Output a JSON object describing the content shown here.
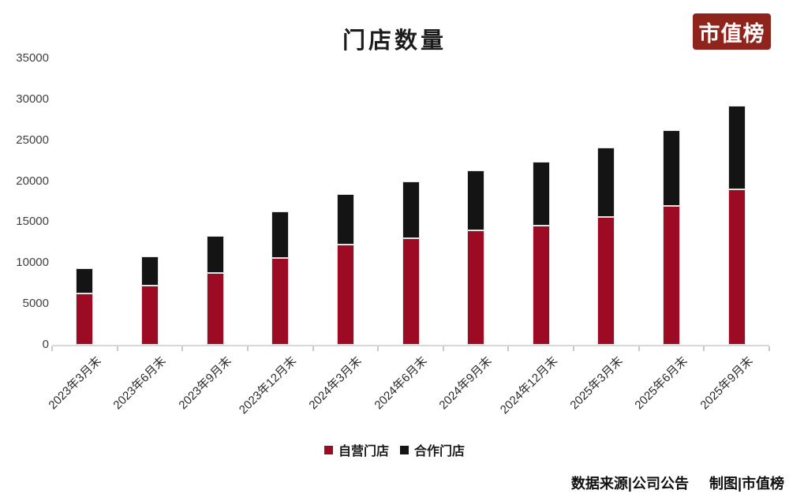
{
  "header": {
    "logo": {
      "text": "市值榜",
      "bg_color": "#8E241C",
      "text_color": "#FFFFFF"
    }
  },
  "chart_data": {
    "type": "bar",
    "stacked": true,
    "title": "门店数量",
    "categories": [
      "2023年3月末",
      "2023年6月末",
      "2023年9月末",
      "2023年12月末",
      "2024年3月末",
      "2024年6月末",
      "2024年9月末",
      "2024年12月末",
      "2025年3月末",
      "2025年6月末",
      "2025年9月末"
    ],
    "series": [
      {
        "name": "自营门店",
        "color": "#9C0B23",
        "values": [
          6310,
          7188,
          8807,
          10628,
          12199,
          13056,
          13936,
          14591,
          15615,
          16968,
          18981
        ]
      },
      {
        "name": "合作门店",
        "color": "#141414",
        "values": [
          3041,
          3648,
          4459,
          5620,
          6210,
          6905,
          7407,
          7749,
          8482,
          9238,
          10233
        ]
      }
    ],
    "ylim": [
      0,
      35000
    ],
    "ytick_step": 5000,
    "ytick_labels": [
      "0",
      "5000",
      "10000",
      "15000",
      "20000",
      "25000",
      "30000",
      "35000"
    ],
    "grid": false,
    "legend_position": "bottom",
    "axis_color": "#d8d8d8"
  },
  "footer": {
    "source": "数据来源|公司公告",
    "credit": "制图|市值榜"
  }
}
